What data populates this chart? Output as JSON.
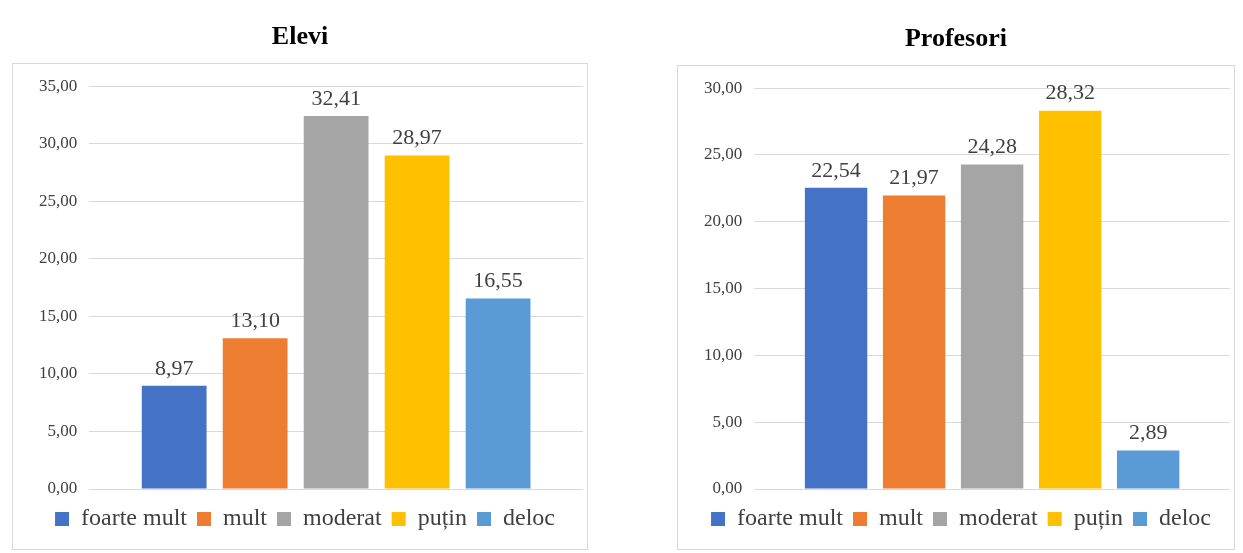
{
  "chart_data": [
    {
      "type": "bar",
      "title": "Elevi",
      "categories": [
        null
      ],
      "series": [
        {
          "name": "foarte mult",
          "color": "#4472c4",
          "values": [
            8.97
          ],
          "value_labels": [
            "8,97"
          ]
        },
        {
          "name": "mult",
          "color": "#ed7d31",
          "values": [
            13.1
          ],
          "value_labels": [
            "13,10"
          ]
        },
        {
          "name": "moderat",
          "color": "#a5a5a5",
          "values": [
            32.41
          ],
          "value_labels": [
            "32,41"
          ]
        },
        {
          "name": "puțin",
          "color": "#ffc000",
          "values": [
            28.97
          ],
          "value_labels": [
            "28,97"
          ]
        },
        {
          "name": "deloc",
          "color": "#5b9bd5",
          "values": [
            16.55
          ],
          "value_labels": [
            "16,55"
          ]
        }
      ],
      "ylim": [
        0,
        35
      ],
      "yticks": [
        {
          "value": 0,
          "label": "0,00"
        },
        {
          "value": 5,
          "label": "5,00"
        },
        {
          "value": 10,
          "label": "10,00"
        },
        {
          "value": 15,
          "label": "15,00"
        },
        {
          "value": 20,
          "label": "20,00"
        },
        {
          "value": 25,
          "label": "25,00"
        },
        {
          "value": 30,
          "label": "30,00"
        },
        {
          "value": 35,
          "label": "35,00"
        }
      ],
      "grid": "y",
      "legend": "bottom"
    },
    {
      "type": "bar",
      "title": "Profesori",
      "categories": [
        null
      ],
      "series": [
        {
          "name": "foarte mult",
          "color": "#4472c4",
          "values": [
            22.54
          ],
          "value_labels": [
            "22,54"
          ]
        },
        {
          "name": "mult",
          "color": "#ed7d31",
          "values": [
            21.97
          ],
          "value_labels": [
            "21,97"
          ]
        },
        {
          "name": "moderat",
          "color": "#a5a5a5",
          "values": [
            24.28
          ],
          "value_labels": [
            "24,28"
          ]
        },
        {
          "name": "puțin",
          "color": "#ffc000",
          "values": [
            28.32
          ],
          "value_labels": [
            "28,32"
          ]
        },
        {
          "name": "deloc",
          "color": "#5b9bd5",
          "values": [
            2.89
          ],
          "value_labels": [
            "2,89"
          ]
        }
      ],
      "ylim": [
        0,
        30
      ],
      "yticks": [
        {
          "value": 0,
          "label": "0,00"
        },
        {
          "value": 5,
          "label": "5,00"
        },
        {
          "value": 10,
          "label": "10,00"
        },
        {
          "value": 15,
          "label": "15,00"
        },
        {
          "value": 20,
          "label": "20,00"
        },
        {
          "value": 25,
          "label": "25,00"
        },
        {
          "value": 30,
          "label": "30,00"
        }
      ],
      "grid": "y",
      "legend": "bottom"
    }
  ]
}
